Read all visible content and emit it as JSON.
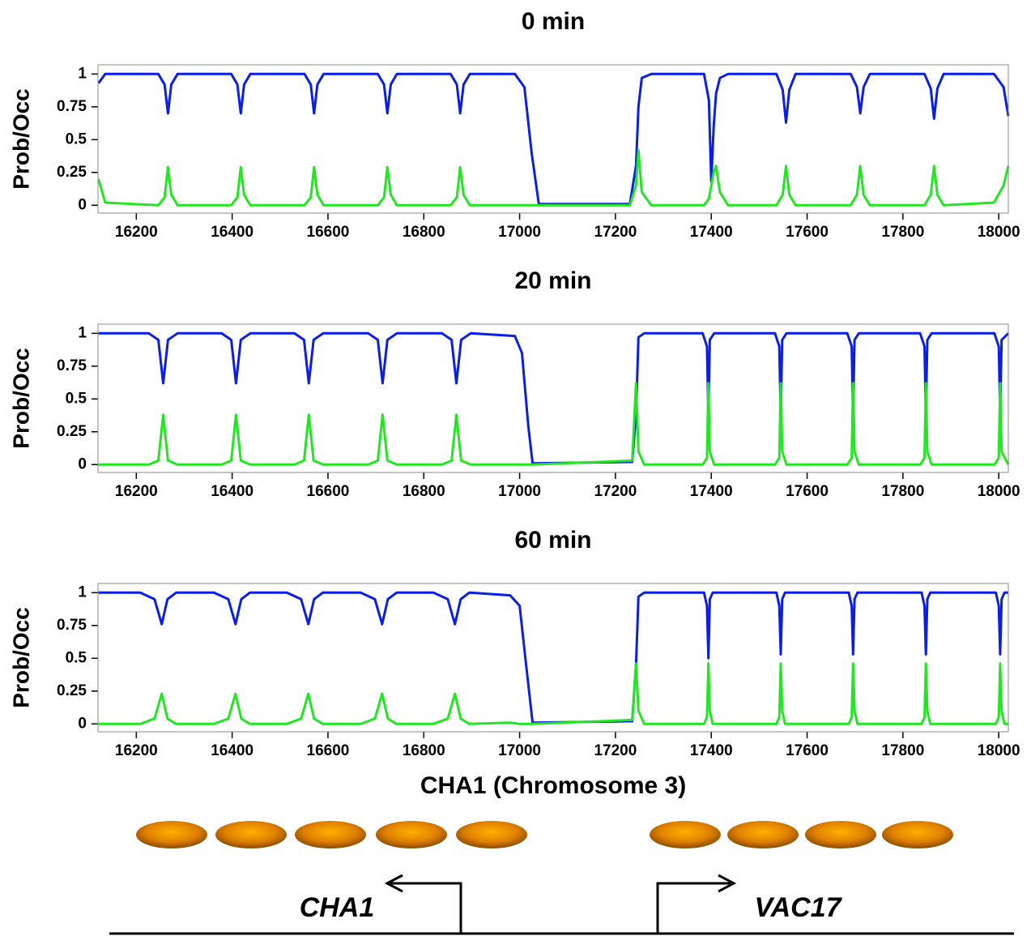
{
  "chart_data": [
    {
      "type": "line",
      "title": "0 min",
      "y_label": "Prob/Occ",
      "xlim": [
        16120,
        18020
      ],
      "ylim": [
        -0.06,
        1.07
      ],
      "xticks": [
        16200,
        16400,
        16600,
        16800,
        17000,
        17200,
        17400,
        17600,
        17800,
        18000
      ],
      "yticks": [
        0,
        0.25,
        0.5,
        0.75,
        1
      ],
      "x": [
        16121,
        16135,
        16246,
        16259,
        16266,
        16273,
        16286,
        16398,
        16411,
        16418,
        16425,
        16438,
        16551,
        16564,
        16571,
        16578,
        16591,
        16704,
        16717,
        16724,
        16731,
        16744,
        16856,
        16869,
        16876,
        16883,
        16896,
        16990,
        17010,
        17025,
        17040,
        17230,
        17243,
        17248,
        17255,
        17275,
        17385,
        17395,
        17400,
        17405,
        17410,
        17418,
        17435,
        17536,
        17549,
        17556,
        17563,
        17576,
        17691,
        17704,
        17711,
        17718,
        17731,
        17845,
        17858,
        17865,
        17872,
        17885,
        17990,
        18010,
        18020
      ],
      "series": [
        {
          "color": "#0a1ee6",
          "values": [
            0.93,
            1,
            1,
            0.92,
            0.7,
            0.92,
            1,
            1,
            0.92,
            0.7,
            0.92,
            1,
            1,
            0.92,
            0.7,
            0.92,
            1,
            1,
            0.92,
            0.7,
            0.92,
            1,
            1,
            0.92,
            0.7,
            0.92,
            1,
            1,
            0.9,
            0.4,
            0.01,
            0.01,
            0.3,
            0.75,
            0.97,
            1,
            1,
            0.8,
            0.18,
            0.6,
            0.85,
            0.97,
            1,
            1,
            0.88,
            0.63,
            0.88,
            1,
            1,
            0.9,
            0.7,
            0.9,
            1,
            1,
            0.89,
            0.66,
            0.89,
            1,
            1,
            0.9,
            0.68
          ]
        },
        {
          "color": "#22e622",
          "values": [
            0.2,
            0.02,
            0,
            0.06,
            0.29,
            0.08,
            0,
            0,
            0.06,
            0.29,
            0.08,
            0,
            0,
            0.06,
            0.29,
            0.08,
            0,
            0,
            0.06,
            0.29,
            0.08,
            0,
            0,
            0.06,
            0.29,
            0.08,
            0,
            0,
            0,
            0,
            0,
            0,
            0.15,
            0.42,
            0.1,
            0,
            0,
            0.05,
            0.15,
            0.25,
            0.3,
            0.1,
            0,
            0,
            0.08,
            0.3,
            0.08,
            0,
            0,
            0.08,
            0.3,
            0.08,
            0,
            0,
            0.08,
            0.3,
            0.08,
            0,
            0.02,
            0.15,
            0.3
          ]
        }
      ]
    },
    {
      "type": "line",
      "title": "20 min",
      "y_label": "Prob/Occ",
      "xlim": [
        16120,
        18020
      ],
      "ylim": [
        -0.06,
        1.07
      ],
      "xticks": [
        16200,
        16400,
        16600,
        16800,
        17000,
        17200,
        17400,
        17600,
        17800,
        18000
      ],
      "yticks": [
        0,
        0.25,
        0.5,
        0.75,
        1
      ],
      "x": [
        16121,
        16226,
        16246,
        16256,
        16266,
        16286,
        16378,
        16398,
        16408,
        16418,
        16438,
        16530,
        16550,
        16560,
        16570,
        16590,
        16684,
        16704,
        16714,
        16724,
        16744,
        16838,
        16858,
        16868,
        16878,
        16898,
        16990,
        17005,
        17018,
        17027,
        17235,
        17243,
        17248,
        17260,
        17382,
        17391,
        17394,
        17397,
        17406,
        17533,
        17542,
        17545,
        17548,
        17557,
        17684,
        17693,
        17696,
        17699,
        17708,
        17836,
        17845,
        17848,
        17851,
        17860,
        17991,
        18000,
        18003,
        18006,
        18020
      ],
      "series": [
        {
          "color": "#0a1ee6",
          "values": [
            1,
            1,
            0.95,
            0.62,
            0.95,
            1,
            1,
            0.95,
            0.62,
            0.95,
            1,
            1,
            0.95,
            0.62,
            0.95,
            1,
            1,
            0.95,
            0.62,
            0.95,
            1,
            1,
            0.95,
            0.62,
            0.95,
            1,
            0.98,
            0.85,
            0.3,
            0.01,
            0.02,
            0.38,
            0.97,
            1,
            1,
            0.9,
            0.38,
            0.95,
            1,
            1,
            0.9,
            0.38,
            0.95,
            1,
            1,
            0.9,
            0.38,
            0.95,
            1,
            1,
            0.9,
            0.38,
            0.95,
            1,
            1,
            0.9,
            0.38,
            0.95,
            1
          ]
        },
        {
          "color": "#22e622",
          "values": [
            0,
            0,
            0.03,
            0.38,
            0.03,
            0,
            0,
            0.03,
            0.38,
            0.03,
            0,
            0,
            0.03,
            0.38,
            0.03,
            0,
            0,
            0.03,
            0.38,
            0.03,
            0,
            0,
            0.03,
            0.38,
            0.03,
            0,
            0,
            0,
            0,
            0,
            0.03,
            0.62,
            0.1,
            0,
            0,
            0.05,
            0.62,
            0.1,
            0,
            0,
            0.05,
            0.62,
            0.1,
            0,
            0,
            0.05,
            0.62,
            0.1,
            0,
            0,
            0.05,
            0.62,
            0.1,
            0,
            0,
            0.05,
            0.62,
            0.1,
            0
          ]
        }
      ]
    },
    {
      "type": "line",
      "title": "60 min",
      "y_label": "Prob/Occ",
      "x_label": "CHA1 (Chromosome 3)",
      "xlim": [
        16120,
        18020
      ],
      "ylim": [
        -0.06,
        1.07
      ],
      "xticks": [
        16200,
        16400,
        16600,
        16800,
        17000,
        17200,
        17400,
        17600,
        17800,
        18000
      ],
      "yticks": [
        0,
        0.25,
        0.5,
        0.75,
        1
      ],
      "x": [
        16121,
        16208,
        16238,
        16253,
        16265,
        16283,
        16362,
        16392,
        16407,
        16419,
        16437,
        16514,
        16544,
        16559,
        16571,
        16589,
        16668,
        16698,
        16713,
        16725,
        16743,
        16820,
        16850,
        16865,
        16877,
        16895,
        16980,
        17000,
        17015,
        17027,
        17235,
        17243,
        17248,
        17260,
        17385,
        17391,
        17394,
        17397,
        17403,
        17536,
        17542,
        17545,
        17548,
        17554,
        17687,
        17693,
        17696,
        17699,
        17705,
        17839,
        17845,
        17848,
        17851,
        17857,
        17994,
        18000,
        18003,
        18006,
        18012,
        18020
      ],
      "series": [
        {
          "color": "#0a1ee6",
          "values": [
            1,
            1,
            0.95,
            0.76,
            0.95,
            1,
            1,
            0.95,
            0.76,
            0.95,
            1,
            1,
            0.95,
            0.76,
            0.95,
            1,
            1,
            0.95,
            0.76,
            0.95,
            1,
            1,
            0.95,
            0.76,
            0.95,
            1,
            0.98,
            0.9,
            0.4,
            0.01,
            0.02,
            0.45,
            0.97,
            1,
            1,
            0.9,
            0.5,
            0.95,
            1,
            1,
            0.9,
            0.53,
            0.95,
            1,
            1,
            0.9,
            0.53,
            0.95,
            1,
            1,
            0.9,
            0.53,
            0.95,
            1,
            1,
            0.9,
            0.53,
            0.95,
            1,
            1
          ]
        },
        {
          "color": "#22e622",
          "values": [
            0,
            0,
            0.04,
            0.23,
            0.04,
            0,
            0,
            0.04,
            0.23,
            0.04,
            0,
            0,
            0.04,
            0.23,
            0.04,
            0,
            0,
            0.04,
            0.23,
            0.04,
            0,
            0,
            0.04,
            0.23,
            0.04,
            0,
            0.01,
            0,
            0,
            0,
            0.03,
            0.46,
            0.1,
            0,
            0,
            0.05,
            0.46,
            0.1,
            0,
            0,
            0.05,
            0.46,
            0.1,
            0,
            0,
            0.05,
            0.46,
            0.1,
            0,
            0,
            0.05,
            0.46,
            0.1,
            0,
            0,
            0.05,
            0.46,
            0.1,
            0,
            0
          ]
        }
      ]
    }
  ],
  "diagram": {
    "genes": [
      "CHA1",
      "VAC17"
    ]
  }
}
